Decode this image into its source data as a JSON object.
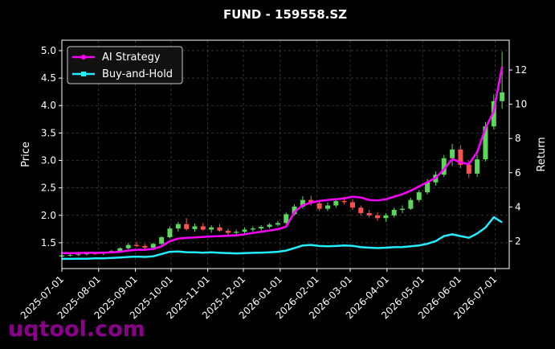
{
  "chart_data": {
    "type": "candlestick",
    "title": "FUND - 159558.SZ",
    "ylabel": "Price",
    "y2label": "Return",
    "watermark": "uqtool.com",
    "grid": true,
    "legend": "upper left",
    "up_color": "#5cd65c",
    "down_color": "#ff5050",
    "xlim": [
      "2025-07-01",
      "2026-07-13"
    ],
    "xticks": [
      "2025-07-01",
      "2025-08-01",
      "2025-09-01",
      "2025-10-01",
      "2025-11-01",
      "2025-12-01",
      "2026-01-01",
      "2026-02-01",
      "2026-03-01",
      "2026-04-01",
      "2026-05-01",
      "2026-06-01",
      "2026-07-01"
    ],
    "ylim": [
      1.03,
      5.19
    ],
    "yticks": [
      1.5,
      {
        "value": 2,
        "label": "2.0"
      },
      2.5,
      {
        "value": 3,
        "label": "3.0"
      },
      3.5,
      {
        "value": 4,
        "label": "4.0"
      },
      4.5,
      {
        "value": 5,
        "label": "5.0"
      }
    ],
    "y2lim": [
      0.4,
      13.74
    ],
    "y2ticks": [
      2,
      4,
      6,
      8,
      10,
      12
    ],
    "x": [
      "2025-07-01",
      "2025-07-08",
      "2025-07-15",
      "2025-07-22",
      "2025-07-29",
      "2025-08-05",
      "2025-08-12",
      "2025-08-19",
      "2025-08-26",
      "2025-09-02",
      "2025-09-09",
      "2025-09-16",
      "2025-09-23",
      "2025-09-30",
      "2025-10-07",
      "2025-10-14",
      "2025-10-21",
      "2025-10-28",
      "2025-11-04",
      "2025-11-11",
      "2025-11-18",
      "2025-11-25",
      "2025-12-02",
      "2025-12-09",
      "2025-12-16",
      "2025-12-23",
      "2025-12-30",
      "2026-01-06",
      "2026-01-13",
      "2026-01-20",
      "2026-01-27",
      "2026-02-03",
      "2026-02-10",
      "2026-02-17",
      "2026-02-24",
      "2026-03-03",
      "2026-03-10",
      "2026-03-17",
      "2026-03-24",
      "2026-03-31",
      "2026-04-07",
      "2026-04-14",
      "2026-04-21",
      "2026-04-28",
      "2026-05-05",
      "2026-05-12",
      "2026-05-19",
      "2026-05-26",
      "2026-06-02",
      "2026-06-09",
      "2026-06-16",
      "2026-06-23",
      "2026-06-30",
      "2026-07-07"
    ],
    "open": [
      1.25,
      1.27,
      1.28,
      1.29,
      1.31,
      1.3,
      1.33,
      1.35,
      1.4,
      1.46,
      1.44,
      1.41,
      1.48,
      1.6,
      1.76,
      1.84,
      1.75,
      1.8,
      1.74,
      1.78,
      1.72,
      1.68,
      1.7,
      1.74,
      1.76,
      1.79,
      1.83,
      1.86,
      2.02,
      2.16,
      2.28,
      2.22,
      2.12,
      2.18,
      2.26,
      2.24,
      2.14,
      2.04,
      2.0,
      1.95,
      2.0,
      2.1,
      2.12,
      2.28,
      2.42,
      2.6,
      2.74,
      3.04,
      3.2,
      2.92,
      2.76,
      3.02,
      3.62,
      4.08
    ],
    "high": [
      1.28,
      1.3,
      1.31,
      1.33,
      1.33,
      1.34,
      1.37,
      1.42,
      1.5,
      1.52,
      1.48,
      1.5,
      1.62,
      1.8,
      1.88,
      1.95,
      1.85,
      1.86,
      1.82,
      1.84,
      1.76,
      1.74,
      1.78,
      1.8,
      1.82,
      1.86,
      1.9,
      2.05,
      2.2,
      2.35,
      2.36,
      2.28,
      2.24,
      2.3,
      2.34,
      2.3,
      2.18,
      2.1,
      2.06,
      2.04,
      2.14,
      2.18,
      2.32,
      2.46,
      2.66,
      2.8,
      3.1,
      3.3,
      3.28,
      3.0,
      3.1,
      3.7,
      4.2,
      4.98
    ],
    "low": [
      1.23,
      1.25,
      1.26,
      1.27,
      1.28,
      1.28,
      1.31,
      1.33,
      1.38,
      1.42,
      1.38,
      1.39,
      1.46,
      1.58,
      1.7,
      1.72,
      1.7,
      1.72,
      1.68,
      1.7,
      1.64,
      1.62,
      1.66,
      1.7,
      1.72,
      1.76,
      1.8,
      1.84,
      2.0,
      2.12,
      2.18,
      2.08,
      2.08,
      2.14,
      2.2,
      2.1,
      2.0,
      1.96,
      1.9,
      1.88,
      1.96,
      2.04,
      2.1,
      2.24,
      2.38,
      2.54,
      2.7,
      2.9,
      2.86,
      2.68,
      2.7,
      2.98,
      3.56,
      3.94
    ],
    "close": [
      1.27,
      1.28,
      1.29,
      1.31,
      1.3,
      1.33,
      1.35,
      1.4,
      1.46,
      1.44,
      1.41,
      1.48,
      1.6,
      1.76,
      1.84,
      1.75,
      1.8,
      1.74,
      1.78,
      1.72,
      1.68,
      1.7,
      1.74,
      1.76,
      1.79,
      1.83,
      1.86,
      2.02,
      2.16,
      2.28,
      2.22,
      2.12,
      2.18,
      2.26,
      2.24,
      2.14,
      2.04,
      2.0,
      1.95,
      2.0,
      2.1,
      2.12,
      2.28,
      2.42,
      2.6,
      2.74,
      3.04,
      3.2,
      2.92,
      2.76,
      3.02,
      3.62,
      4.08,
      4.24
    ],
    "series": [
      {
        "name": "AI Strategy",
        "color": "#ff00ff",
        "axis": "y2",
        "marker": "circle",
        "values": [
          1.3,
          1.3,
          1.31,
          1.32,
          1.32,
          1.33,
          1.35,
          1.38,
          1.45,
          1.5,
          1.5,
          1.55,
          1.7,
          2.0,
          2.15,
          2.2,
          2.22,
          2.25,
          2.28,
          2.3,
          2.32,
          2.34,
          2.4,
          2.48,
          2.55,
          2.62,
          2.7,
          2.85,
          3.7,
          4.1,
          4.25,
          4.35,
          4.4,
          4.45,
          4.5,
          4.6,
          4.55,
          4.4,
          4.38,
          4.45,
          4.6,
          4.75,
          4.95,
          5.2,
          5.45,
          5.7,
          6.2,
          6.8,
          6.6,
          6.5,
          7.2,
          8.6,
          9.6,
          12.2
        ]
      },
      {
        "name": "Buy-and-Hold",
        "color": "#22eeff",
        "axis": "y2",
        "marker": "square",
        "values": [
          0.97,
          0.97,
          0.98,
          0.98,
          1.0,
          1.0,
          1.02,
          1.05,
          1.08,
          1.1,
          1.08,
          1.12,
          1.25,
          1.38,
          1.4,
          1.36,
          1.35,
          1.33,
          1.35,
          1.32,
          1.3,
          1.29,
          1.3,
          1.32,
          1.33,
          1.35,
          1.38,
          1.45,
          1.6,
          1.75,
          1.78,
          1.72,
          1.7,
          1.72,
          1.75,
          1.73,
          1.65,
          1.62,
          1.6,
          1.62,
          1.65,
          1.66,
          1.7,
          1.75,
          1.85,
          2.0,
          2.3,
          2.4,
          2.3,
          2.2,
          2.45,
          2.8,
          3.4,
          3.1
        ]
      }
    ]
  }
}
